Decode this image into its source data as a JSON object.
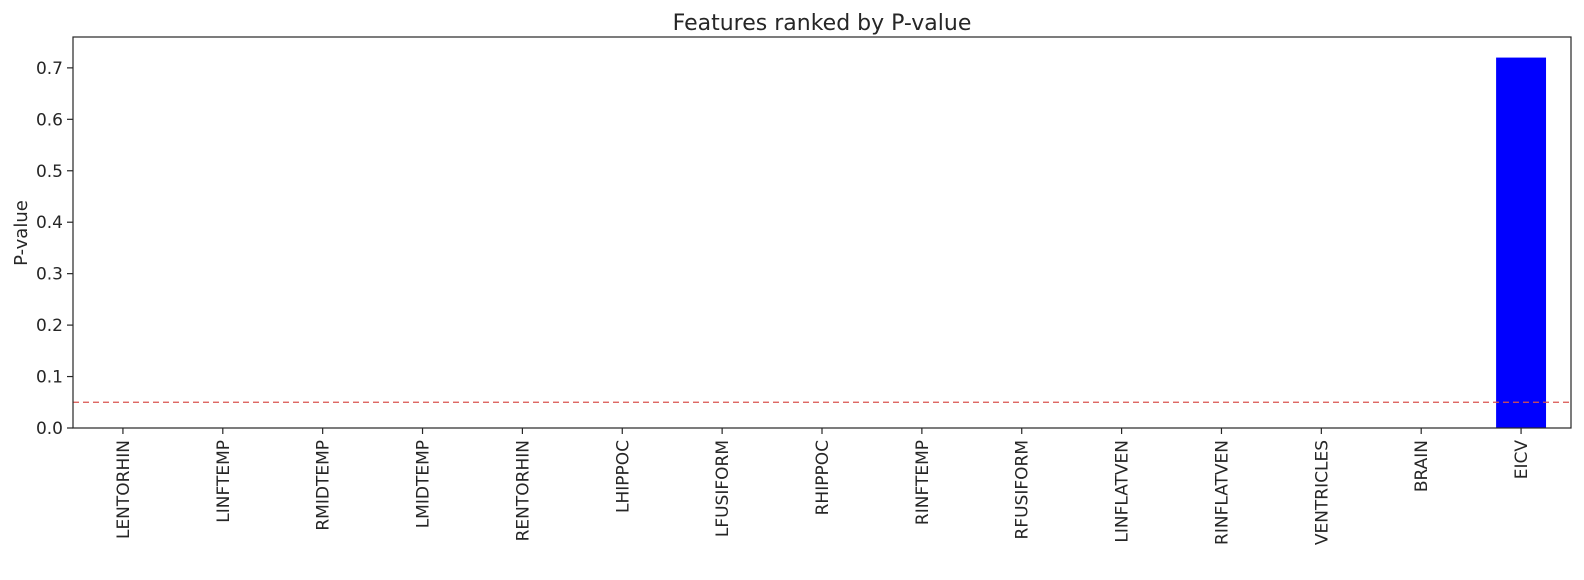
{
  "chart_data": {
    "type": "bar",
    "title": "Features ranked by P-value",
    "xlabel": "",
    "ylabel": "P-value",
    "categories": [
      "LENTORHIN",
      "LINFTEMP",
      "RMIDTEMP",
      "LMIDTEMP",
      "RENTORHIN",
      "LHIPPOC",
      "LFUSIFORM",
      "RHIPPOC",
      "RINFTEMP",
      "RFUSIFORM",
      "LINFLATVEN",
      "RINFLATVEN",
      "VENTRICLES",
      "BRAIN",
      "EICV"
    ],
    "values": [
      0.0,
      0.0,
      0.0,
      0.0,
      0.0,
      0.0,
      0.0,
      0.0,
      0.0,
      0.0,
      0.0,
      0.0,
      0.0,
      0.0,
      0.72
    ],
    "ylim": [
      0,
      0.76
    ],
    "yticks": [
      "0.0",
      "0.1",
      "0.2",
      "0.3",
      "0.4",
      "0.5",
      "0.6",
      "0.7"
    ],
    "threshold": 0.05,
    "grid": false,
    "bar_color": "#0000ff",
    "threshold_color": "#d9534f"
  }
}
